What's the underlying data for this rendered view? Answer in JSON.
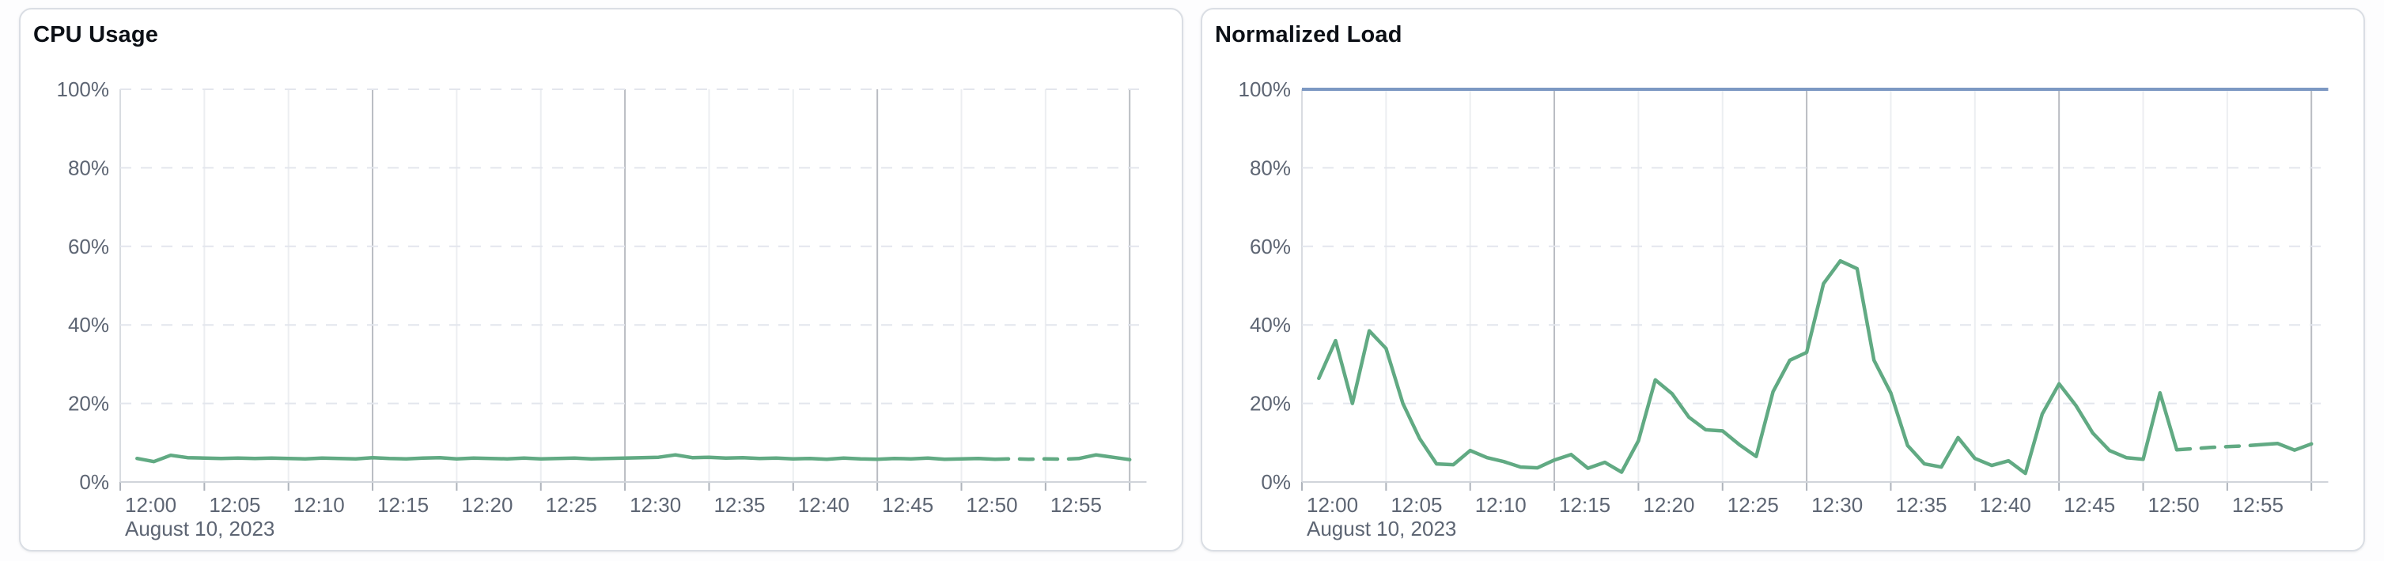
{
  "page": {
    "background_color": "#fdfdfe",
    "card_border_color": "#dadee4"
  },
  "chart_data": [
    {
      "type": "line",
      "title": "CPU Usage",
      "xlabel": "",
      "ylabel": "",
      "date_label": "August 10, 2023",
      "x_tick_labels": [
        "12:00",
        "12:05",
        "12:10",
        "12:15",
        "12:20",
        "12:25",
        "12:30",
        "12:35",
        "12:40",
        "12:45",
        "12:50",
        "12:55"
      ],
      "x_range_minutes": [
        0,
        61
      ],
      "x_label_every_minutes": 5,
      "x_major_gridline_every_minutes": 15,
      "ylim": [
        0,
        100
      ],
      "y_tick_labels": [
        "0%",
        "20%",
        "40%",
        "60%",
        "80%",
        "100%"
      ],
      "grid": "dashed-horizontal",
      "legend": "none",
      "threshold_line": null,
      "series": [
        {
          "name": "CPU Usage",
          "color": "#61aa83",
          "start_minute": 1,
          "step_minutes": 1,
          "dashed_minutes": [
            52,
            57
          ],
          "values": [
            6.0,
            5.2,
            6.8,
            6.2,
            6.1,
            6.0,
            6.1,
            6.0,
            6.1,
            6.0,
            5.9,
            6.1,
            6.0,
            5.9,
            6.2,
            6.0,
            5.9,
            6.1,
            6.2,
            5.9,
            6.1,
            6.0,
            5.9,
            6.1,
            5.9,
            6.0,
            6.1,
            5.9,
            6.0,
            6.1,
            6.2,
            6.3,
            6.9,
            6.2,
            6.3,
            6.1,
            6.2,
            6.0,
            6.1,
            5.9,
            6.0,
            5.8,
            6.1,
            5.9,
            5.8,
            6.0,
            5.9,
            6.1,
            5.8,
            5.9,
            6.0,
            5.8,
            5.9,
            5.8,
            5.9,
            5.8,
            6.0,
            6.9,
            6.3,
            5.7
          ]
        }
      ]
    },
    {
      "type": "line",
      "title": "Normalized Load",
      "xlabel": "",
      "ylabel": "",
      "date_label": "August 10, 2023",
      "x_tick_labels": [
        "12:00",
        "12:05",
        "12:10",
        "12:15",
        "12:20",
        "12:25",
        "12:30",
        "12:35",
        "12:40",
        "12:45",
        "12:50",
        "12:55"
      ],
      "x_range_minutes": [
        0,
        61
      ],
      "x_label_every_minutes": 5,
      "x_major_gridline_every_minutes": 15,
      "ylim": [
        0,
        100
      ],
      "y_tick_labels": [
        "0%",
        "20%",
        "40%",
        "60%",
        "80%",
        "100%"
      ],
      "grid": "dashed-horizontal",
      "legend": "none",
      "threshold_line": {
        "value": 100,
        "color": "#7c98c3"
      },
      "series": [
        {
          "name": "Normalized Load",
          "color": "#61aa83",
          "start_minute": 1,
          "step_minutes": 1,
          "dashed_minutes": [
            52,
            57
          ],
          "values": [
            26.4,
            36,
            20,
            38.5,
            34,
            20,
            11,
            4.6,
            4.4,
            8,
            6.2,
            5.2,
            3.8,
            3.6,
            5.6,
            7,
            3.5,
            5,
            2.5,
            10.5,
            26,
            22.5,
            16.5,
            13.3,
            13,
            9.5,
            6.5,
            23,
            31,
            33,
            50.5,
            56.3,
            54.3,
            31,
            22.7,
            9.3,
            4.6,
            3.8,
            11.3,
            6,
            4.2,
            5.4,
            2.2,
            17.3,
            25,
            19.5,
            12.5,
            8,
            6.2,
            5.8,
            22.7,
            8.2,
            8.5,
            8.8,
            9,
            9.2,
            9.5,
            9.8,
            8.1,
            9.7
          ]
        }
      ]
    }
  ],
  "style": {
    "gridline_dashed_color": "#e3e6ed",
    "axis_line_color": "#d0d4da",
    "minor_vline_color": "#eceef1",
    "major_vline_color": "#b9bcc2",
    "edge_vline_color": "#d9dce1",
    "tick_color": "#aeb3bb",
    "label_color": "#5d6573",
    "title_color": "#0c1016"
  }
}
